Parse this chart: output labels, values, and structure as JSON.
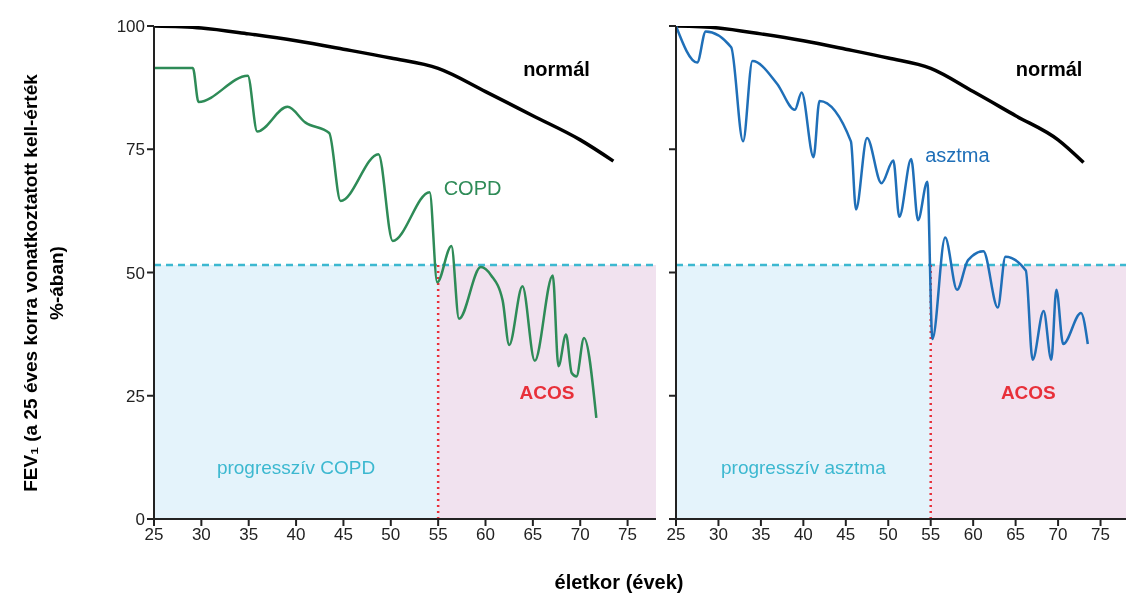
{
  "chart_data": [
    {
      "type": "line",
      "ylabel": "FEV₁ (a 25 éves korra vonatkoztatott kell-érték %-ában)",
      "xlabel": "életkor (évek)",
      "xlim": [
        25,
        78
      ],
      "xticks": [
        25,
        30,
        35,
        40,
        45,
        50,
        55,
        60,
        65,
        70,
        75
      ],
      "ylim": [
        0,
        100
      ],
      "yticks": [
        0,
        25,
        50,
        75,
        100
      ],
      "grid": false,
      "legend": false,
      "marker": "none",
      "line_style": "solid",
      "series": [
        {
          "name": "normál",
          "color": "#000000",
          "x": [
            25,
            30,
            35,
            40,
            45,
            50,
            55,
            60,
            65,
            70,
            73.5
          ],
          "values": [
            100,
            99.6,
            98.4,
            97,
            95.3,
            93.5,
            91.4,
            86.7,
            81.8,
            76.9,
            72.6
          ]
        },
        {
          "name": "COPD",
          "color": "#2e8b57",
          "x": [
            25,
            29.1,
            29.7,
            34.9,
            35.9,
            39.1,
            41,
            43.5,
            44.7,
            48.7,
            50.2,
            54.1,
            54.9,
            56.4,
            57.2,
            59.5,
            60.6,
            61.8,
            62.5,
            63.9,
            65.2,
            67.1,
            67.7,
            68.5,
            69.1,
            69.6,
            70.4,
            71.7
          ],
          "values": [
            91.5,
            91.5,
            84.6,
            89.9,
            78.6,
            83.6,
            80.4,
            78.3,
            64.5,
            74,
            56.4,
            66.3,
            48,
            55.4,
            40.6,
            51.1,
            49.4,
            44.4,
            35.3,
            47.2,
            32.1,
            49.4,
            31,
            37.4,
            29.6,
            28.9,
            36.7,
            20.5
          ]
        }
      ],
      "ref_lines": [
        {
          "axis": "y",
          "value": 51.5,
          "color": "#3cb8d0",
          "line_style": "dashed"
        },
        {
          "axis": "x",
          "value": 55,
          "color": "#e8303a",
          "line_style": "dotted"
        }
      ],
      "bands": [
        {
          "axis": "x",
          "from": 25,
          "to": 55,
          "label": "progresszív COPD",
          "color": "#e4f3fb"
        },
        {
          "axis": "x",
          "from": 55,
          "to": 78,
          "label": "ACOS",
          "color": "#f1e2ef"
        }
      ]
    },
    {
      "type": "line",
      "xlim": [
        25,
        78
      ],
      "xticks": [
        25,
        30,
        35,
        40,
        45,
        50,
        55,
        60,
        65,
        70,
        75
      ],
      "ylim": [
        0,
        100
      ],
      "yticks": [
        0,
        25,
        50,
        75,
        100
      ],
      "tick_labels": "x",
      "grid": false,
      "legend": false,
      "marker": "none",
      "line_style": "solid",
      "series": [
        {
          "name": "normál",
          "color": "#000000",
          "x": [
            25,
            30,
            35,
            40,
            45,
            50,
            55,
            60,
            65,
            70,
            73
          ],
          "values": [
            100,
            99.6,
            98.4,
            97,
            95.3,
            93.5,
            91.4,
            86.7,
            81.8,
            76.9,
            72.3
          ]
        },
        {
          "name": "asztma",
          "color": "#1f6fb8",
          "x": [
            25,
            27.5,
            28.5,
            31.5,
            32.9,
            34,
            36.9,
            39,
            39.8,
            41.2,
            41.9,
            45.6,
            46.2,
            47.5,
            49.2,
            50.6,
            51.3,
            52.7,
            53.5,
            54.6,
            55.2,
            56.7,
            58.1,
            59.4,
            61.2,
            62.9,
            63.8,
            66.2,
            67,
            68.3,
            69.2,
            69.8,
            70.6,
            72.7,
            73.5
          ],
          "values": [
            100,
            92.6,
            98.9,
            95.7,
            76.6,
            92.9,
            88.3,
            83,
            86.5,
            73.4,
            84.8,
            76.6,
            62.8,
            77.3,
            68.1,
            72.7,
            61.3,
            73,
            60.6,
            68.4,
            36.5,
            57.1,
            46.5,
            52.5,
            54.3,
            42.9,
            53.2,
            50.4,
            32.3,
            42.2,
            32.3,
            46.5,
            35.5,
            41.8,
            35.5
          ]
        }
      ],
      "ref_lines": [
        {
          "axis": "y",
          "value": 51.5,
          "color": "#3cb8d0",
          "line_style": "dashed"
        },
        {
          "axis": "x",
          "value": 55,
          "color": "#e8303a",
          "line_style": "dotted"
        }
      ],
      "bands": [
        {
          "axis": "x",
          "from": 25,
          "to": 55,
          "label": "progresszív asztma",
          "color": "#e4f3fb"
        },
        {
          "axis": "x",
          "from": 55,
          "to": 78,
          "label": "ACOS",
          "color": "#f1e2ef"
        }
      ]
    }
  ]
}
